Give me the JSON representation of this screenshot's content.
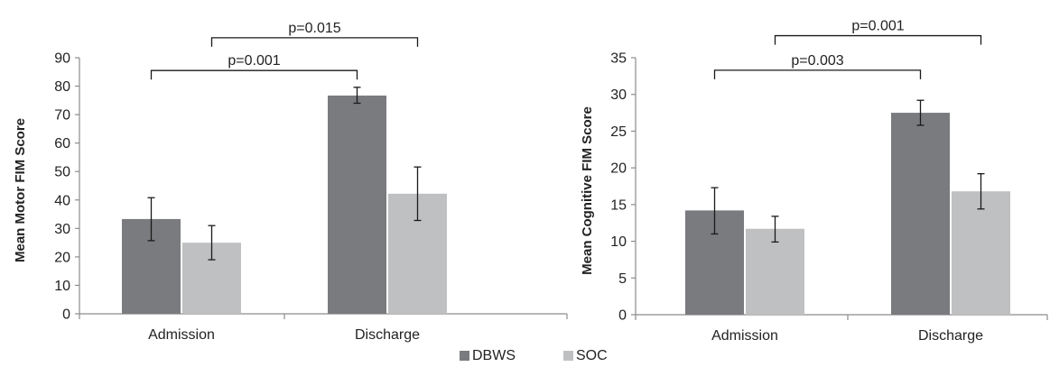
{
  "colors": {
    "DBWS": "#7a7b7e",
    "SOC": "#bfc0c2",
    "axis": "#8c8c8c",
    "text": "#222222"
  },
  "legend": {
    "position": "bottom-center",
    "items": [
      "DBWS",
      "SOC"
    ]
  },
  "chart_data": [
    {
      "type": "bar",
      "ylabel": "Mean Motor FIM Score",
      "xlabel": "",
      "categories": [
        "Admission",
        "Discharge"
      ],
      "ylim": [
        0,
        90
      ],
      "yticks": [
        0,
        10,
        20,
        30,
        40,
        50,
        60,
        70,
        80,
        90
      ],
      "series": [
        {
          "name": "DBWS",
          "values": [
            33.3,
            76.7
          ],
          "error_low": [
            25.7,
            74.0
          ],
          "error_high": [
            40.8,
            79.6
          ]
        },
        {
          "name": "SOC",
          "values": [
            25.0,
            42.2
          ],
          "error_low": [
            19.0,
            32.8
          ],
          "error_high": [
            31.0,
            51.6
          ]
        }
      ],
      "annotations": [
        {
          "label": "p=0.001",
          "from": [
            "DBWS",
            "Admission"
          ],
          "to": [
            "DBWS",
            "Discharge"
          ],
          "level": 85.5
        },
        {
          "label": "p=0.015",
          "from": [
            "SOC",
            "Admission"
          ],
          "to": [
            "SOC",
            "Discharge"
          ],
          "level": 97.0
        }
      ],
      "grid": false
    },
    {
      "type": "bar",
      "ylabel": "Mean Cognitive FIM Score",
      "xlabel": "",
      "categories": [
        "Admission",
        "Discharge"
      ],
      "ylim": [
        0,
        35
      ],
      "yticks": [
        0,
        5,
        10,
        15,
        20,
        25,
        30,
        35
      ],
      "series": [
        {
          "name": "DBWS",
          "values": [
            14.2,
            27.5
          ],
          "error_low": [
            11.0,
            25.8
          ],
          "error_high": [
            17.3,
            29.2
          ]
        },
        {
          "name": "SOC",
          "values": [
            11.7,
            16.8
          ],
          "error_low": [
            9.9,
            14.4
          ],
          "error_high": [
            13.4,
            19.2
          ]
        }
      ],
      "annotations": [
        {
          "label": "p=0.003",
          "from": [
            "DBWS",
            "Admission"
          ],
          "to": [
            "DBWS",
            "Discharge"
          ],
          "level": 33.3
        },
        {
          "label": "p=0.001",
          "from": [
            "SOC",
            "Admission"
          ],
          "to": [
            "SOC",
            "Discharge"
          ],
          "level": 38.0
        }
      ],
      "grid": false
    }
  ]
}
